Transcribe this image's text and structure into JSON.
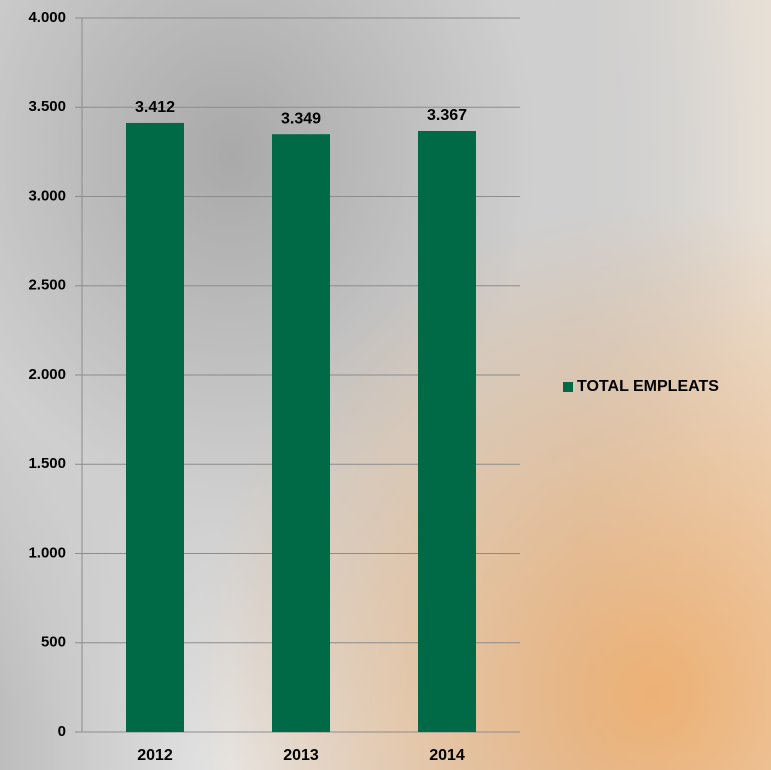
{
  "chart_data": {
    "type": "bar",
    "categories": [
      "2012",
      "2013",
      "2014"
    ],
    "series": [
      {
        "name": "TOTAL EMPLEATS",
        "color": "#006a47",
        "values": [
          3412,
          3349,
          3367
        ],
        "value_labels": [
          "3.412",
          "3.349",
          "3.367"
        ]
      }
    ],
    "ylim": [
      0,
      4000
    ],
    "yticks": [
      0,
      500,
      {
        "value": 1000,
        "label": "1.000"
      },
      {
        "value": 1500,
        "label": "1.500"
      },
      {
        "value": 2000,
        "label": "2.000"
      },
      {
        "value": 2500,
        "label": "2.500"
      },
      {
        "value": 3000,
        "label": "3.000"
      },
      {
        "value": 3500,
        "label": "3.500"
      },
      {
        "value": 4000,
        "label": "4.000"
      }
    ],
    "grid": true,
    "legend": "right"
  }
}
